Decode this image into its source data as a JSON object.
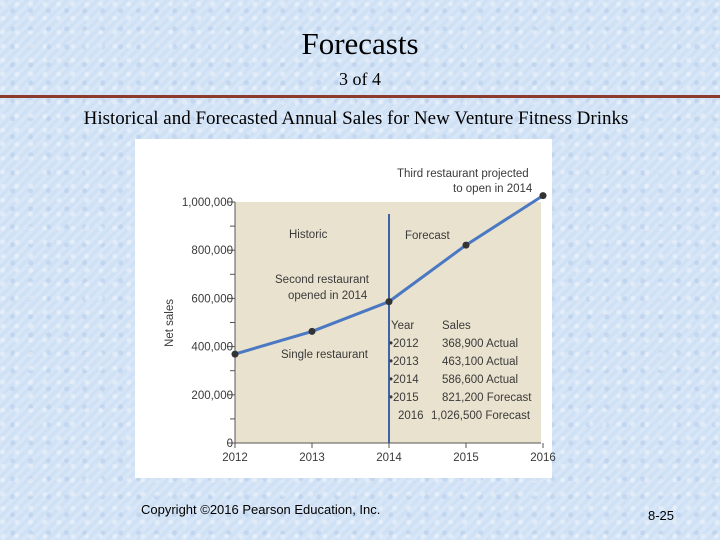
{
  "slide": {
    "title": "Forecasts",
    "subtitle": "3 of 4",
    "heading": "Historical and Forecasted Annual Sales for New Venture Fitness Drinks",
    "copyright": "Copyright ©2016 Pearson Education, Inc.",
    "page_number": "8-25"
  },
  "colors": {
    "title_rule": "#8b3a2b",
    "plot_bg": "#e9e2cf",
    "line": "#4a78c2",
    "divider": "#3f62a8",
    "point": "#333333"
  },
  "chart_data": {
    "type": "line",
    "title": "",
    "xlabel": "",
    "ylabel": "Net sales",
    "x": [
      "2012",
      "2013",
      "2014",
      "2015",
      "2016"
    ],
    "ylim": [
      0,
      1000000
    ],
    "yticks": [
      "0",
      "200,000",
      "400,000",
      "600,000",
      "800,000",
      "1,000,000"
    ],
    "series": [
      {
        "values": [
          368900,
          463100,
          586600,
          821200,
          1026500
        ]
      }
    ],
    "annotations": {
      "historic": "Historic",
      "forecast": "Forecast",
      "second_restaurant": [
        "Second restaurant",
        "opened in 2014"
      ],
      "single_restaurant": "Single restaurant",
      "third_restaurant": [
        "Third restaurant projected",
        "to open in 2014"
      ]
    },
    "table": {
      "headers": [
        "Year",
        "Sales"
      ],
      "rows": [
        {
          "year": "•2012",
          "sales": "368,900 Actual"
        },
        {
          "year": "•2013",
          "sales": "463,100 Actual"
        },
        {
          "year": "•2014",
          "sales": "586,600 Actual"
        },
        {
          "year": "•2015",
          "sales": "821,200 Forecast"
        },
        {
          "year": "2016",
          "sales": "1,026,500 Forecast"
        }
      ]
    },
    "grid": false,
    "legend": "none"
  }
}
